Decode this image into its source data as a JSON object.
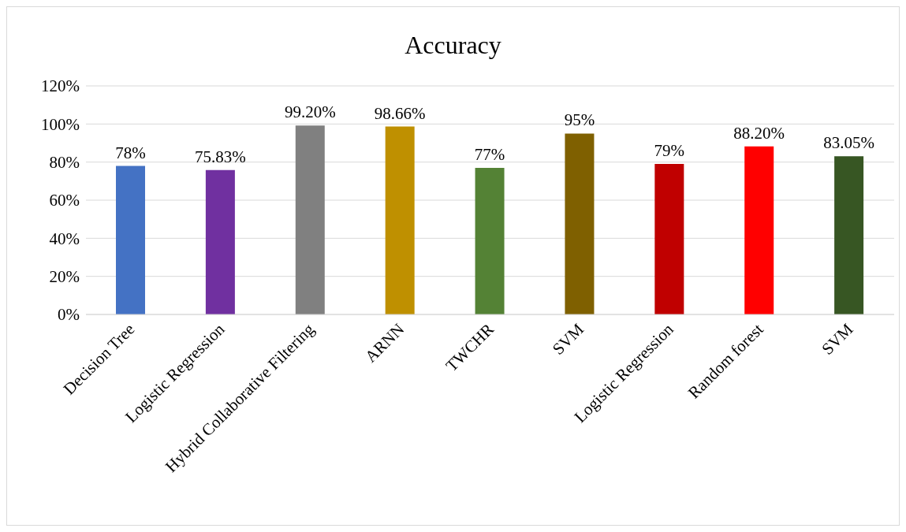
{
  "chart_data": {
    "type": "bar",
    "title": "Accuracy",
    "categories": [
      "Decision Tree",
      "Logistic Regression",
      "Hybrid Collaborative Filtering",
      "ARNN",
      "TWCHR",
      "SVM",
      "Logistic Regression",
      "Random forest",
      "SVM"
    ],
    "values": [
      78,
      75.83,
      99.2,
      98.66,
      77,
      95,
      79,
      88.2,
      83.05
    ],
    "colors": [
      "#4472c4",
      "#7030a0",
      "#808080",
      "#bf9000",
      "#548235",
      "#7f6000",
      "#c00000",
      "#ff0000",
      "#375623"
    ],
    "value_labels": [
      "78%",
      "75.83%",
      "99.20%",
      "98.66%",
      "77%",
      "95%",
      "79%",
      "88.20%",
      "83.05%"
    ],
    "ylim": [
      0,
      120
    ],
    "yticks": [
      {
        "value": 0,
        "label": "0%"
      },
      {
        "value": 20,
        "label": "20%"
      },
      {
        "value": 40,
        "label": "40%"
      },
      {
        "value": 60,
        "label": "60%"
      },
      {
        "value": 80,
        "label": "80%"
      },
      {
        "value": 100,
        "label": "100%"
      },
      {
        "value": 120,
        "label": "120%"
      }
    ],
    "grid": "y"
  }
}
